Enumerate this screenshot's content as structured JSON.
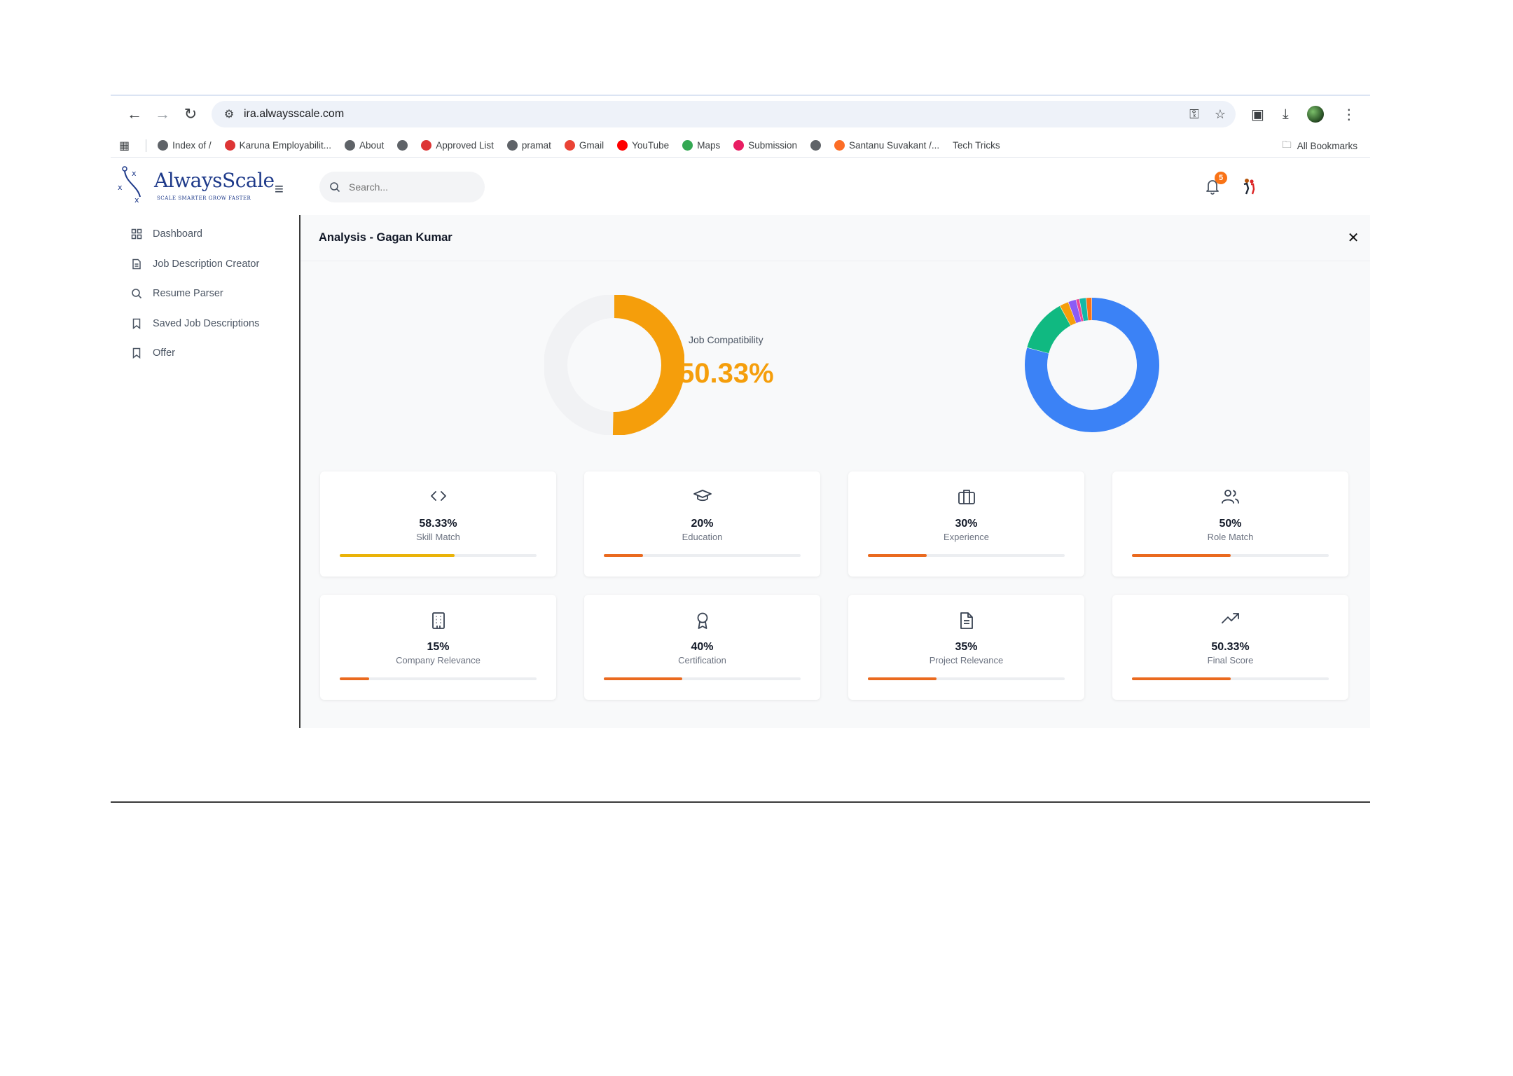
{
  "browser": {
    "url": "ira.alwaysscale.com",
    "bookmarks": [
      {
        "label": "Index of /",
        "icon": "lightning-icon",
        "color": "#5f6368"
      },
      {
        "label": "Karuna Employabilit...",
        "icon": "angular-icon",
        "color": "#dd3535"
      },
      {
        "label": "About",
        "icon": "globe-icon",
        "color": "#5f6368"
      },
      {
        "label": "",
        "icon": "globe-icon",
        "color": "#5f6368"
      },
      {
        "label": "Approved List",
        "icon": "angular-icon",
        "color": "#dd3535"
      },
      {
        "label": "pramat",
        "icon": "globe-icon",
        "color": "#5f6368"
      },
      {
        "label": "Gmail",
        "icon": "gmail-icon",
        "color": "#ea4335"
      },
      {
        "label": "YouTube",
        "icon": "youtube-icon",
        "color": "#ff0000"
      },
      {
        "label": "Maps",
        "icon": "maps-icon",
        "color": "#34a853"
      },
      {
        "label": "Submission",
        "icon": "submission-icon",
        "color": "#e91e63"
      },
      {
        "label": "",
        "icon": "globe-icon",
        "color": "#5f6368"
      },
      {
        "label": "Santanu Suvakant /...",
        "icon": "gitlab-icon",
        "color": "#fc6d26"
      },
      {
        "label": "Tech Tricks",
        "icon": "",
        "color": ""
      }
    ],
    "all_bookmarks": "All Bookmarks"
  },
  "app": {
    "logo_text": "AlwaysScale",
    "logo_tagline": "SCALE SMARTER GROW FASTER",
    "search_placeholder": "Search...",
    "notification_count": "5",
    "menu": [
      {
        "label": "Dashboard",
        "icon": "grid-icon"
      },
      {
        "label": "Job Description Creator",
        "icon": "document-icon"
      },
      {
        "label": "Resume Parser",
        "icon": "search-icon"
      },
      {
        "label": "Saved Job Descriptions",
        "icon": "bookmark-icon"
      },
      {
        "label": "Offer",
        "icon": "bookmark-icon"
      }
    ]
  },
  "analysis": {
    "title": "Analysis - Gagan Kumar",
    "compatibility_label": "Job Compatibility",
    "compatibility_value": "50.33%",
    "compatibility_fraction": 0.5033,
    "colors": {
      "accent": "#f59e0b",
      "track": "#f1f2f4",
      "bar": "#ea6a1f",
      "bar_skill": "#eab308"
    },
    "breakdown_chart": {
      "segments": [
        {
          "value": 58.33,
          "color": "#3b82f6"
        },
        {
          "value": 9.5,
          "color": "#10b981"
        },
        {
          "value": 1.6,
          "color": "#f59e0b"
        },
        {
          "value": 1.4,
          "color": "#8b5cf6"
        },
        {
          "value": 0.6,
          "color": "#ec4899"
        },
        {
          "value": 1.2,
          "color": "#14b8a6"
        },
        {
          "value": 1.0,
          "color": "#f97316"
        }
      ]
    },
    "metrics": [
      {
        "value": "58.33%",
        "label": "Skill Match",
        "fraction": 0.5833,
        "icon": "code-icon"
      },
      {
        "value": "20%",
        "label": "Education",
        "fraction": 0.2,
        "icon": "graduation-cap-icon"
      },
      {
        "value": "30%",
        "label": "Experience",
        "fraction": 0.3,
        "icon": "briefcase-icon"
      },
      {
        "value": "50%",
        "label": "Role Match",
        "fraction": 0.5,
        "icon": "users-icon"
      },
      {
        "value": "15%",
        "label": "Company Relevance",
        "fraction": 0.15,
        "icon": "building-icon"
      },
      {
        "value": "40%",
        "label": "Certification",
        "fraction": 0.4,
        "icon": "award-icon"
      },
      {
        "value": "35%",
        "label": "Project Relevance",
        "fraction": 0.35,
        "icon": "file-text-icon"
      },
      {
        "value": "50.33%",
        "label": "Final Score",
        "fraction": 0.5033,
        "icon": "trending-up-icon"
      }
    ]
  }
}
